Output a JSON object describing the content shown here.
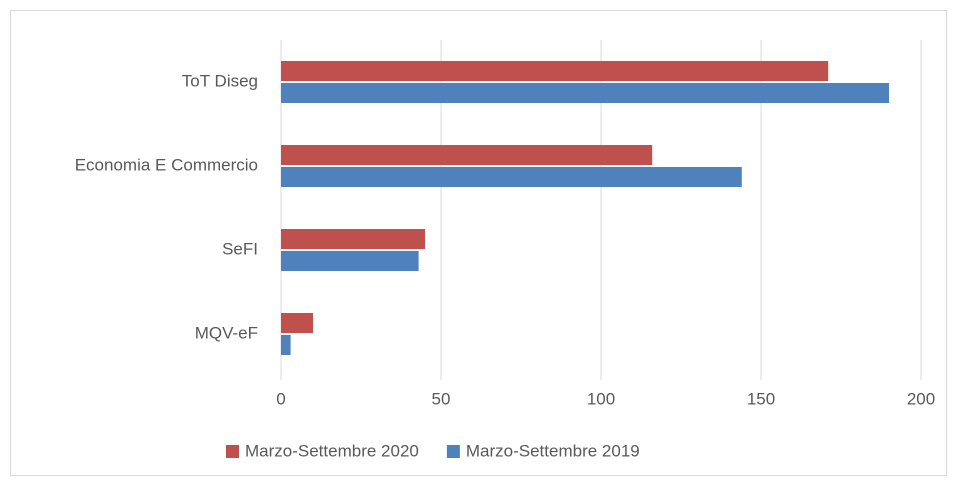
{
  "chart_data": {
    "type": "bar",
    "orientation": "horizontal",
    "categories": [
      "ToT Diseg",
      "Economia E Commercio",
      "SeFI",
      "MQV-eF"
    ],
    "series": [
      {
        "name": "Marzo-Settembre 2020",
        "color": "#c0504d",
        "values": [
          171,
          116,
          45,
          10
        ]
      },
      {
        "name": "Marzo-Settembre 2019",
        "color": "#4f81bd",
        "values": [
          190,
          144,
          43,
          3
        ]
      }
    ],
    "xlim": [
      0,
      200
    ],
    "xticks": [
      0,
      50,
      100,
      150,
      200
    ],
    "grid": true,
    "legend": "bottom"
  }
}
